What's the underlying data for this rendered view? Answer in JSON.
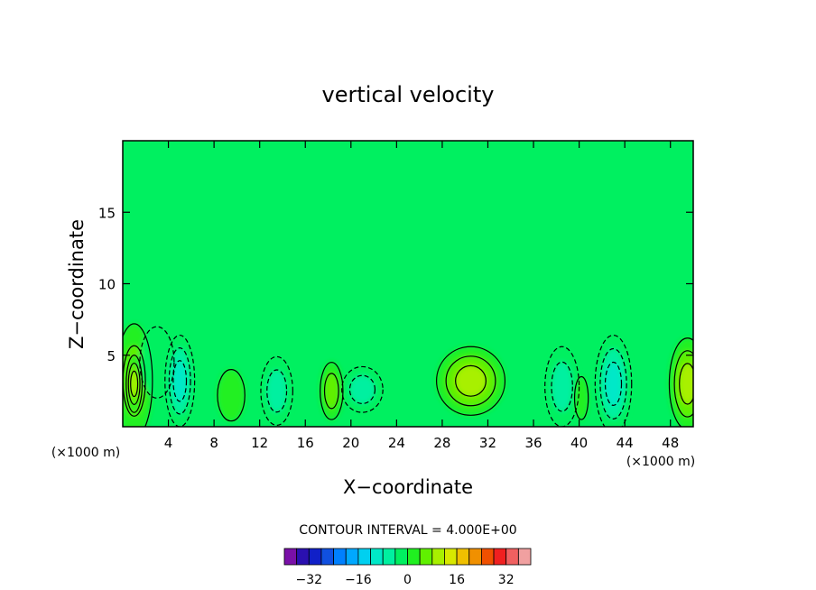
{
  "chart_data": {
    "type": "heatmap",
    "subtype": "filled-contour",
    "title": "vertical velocity",
    "xlabel": "X−coordinate",
    "ylabel": "Z−coordinate",
    "x_unit_label": "(×1000 m)",
    "xlim": [
      0,
      50
    ],
    "ylim": [
      0,
      20
    ],
    "x_ticks": [
      "4",
      "8",
      "12",
      "16",
      "20",
      "24",
      "28",
      "32",
      "36",
      "40",
      "44",
      "48"
    ],
    "y_ticks": [
      "5",
      "10",
      "15"
    ],
    "contour_interval_label": "CONTOUR INTERVAL = 4.000E+00",
    "background_value": 0,
    "cells": [
      {
        "x": 1,
        "z": 3.2,
        "value": 8,
        "sx": 1.6,
        "sz": 4.0
      },
      {
        "x": 1,
        "z": 3.0,
        "value": 12,
        "sx": 0.7,
        "sz": 2.0
      },
      {
        "x": 3.0,
        "z": 4.5,
        "value": -2,
        "sx": 1.5,
        "sz": 2.5
      },
      {
        "x": 5.0,
        "z": 3.2,
        "value": -12,
        "sx": 1.3,
        "sz": 3.2
      },
      {
        "x": 9.5,
        "z": 2.2,
        "value": 5,
        "sx": 1.2,
        "sz": 1.8
      },
      {
        "x": 13.5,
        "z": 2.5,
        "value": -8,
        "sx": 1.4,
        "sz": 2.4
      },
      {
        "x": 18.3,
        "z": 2.5,
        "value": 7,
        "sx": 1.0,
        "sz": 2.0
      },
      {
        "x": 21.0,
        "z": 2.6,
        "value": -6,
        "sx": 1.8,
        "sz": 1.6
      },
      {
        "x": 30.5,
        "z": 3.2,
        "value": 10,
        "sx": 3.0,
        "sz": 2.4
      },
      {
        "x": 38.5,
        "z": 2.8,
        "value": -8,
        "sx": 1.5,
        "sz": 2.8
      },
      {
        "x": 43.0,
        "z": 3.0,
        "value": -12,
        "sx": 1.6,
        "sz": 3.4
      },
      {
        "x": 40.2,
        "z": 2.0,
        "value": 3,
        "sx": 0.6,
        "sz": 1.5
      },
      {
        "x": 49.5,
        "z": 3.0,
        "value": 10,
        "sx": 1.6,
        "sz": 3.2
      }
    ],
    "colorbar": {
      "colors": [
        "#7a10a8",
        "#2a10b0",
        "#1020c8",
        "#1050e0",
        "#0080ff",
        "#00a8ff",
        "#00d0f0",
        "#00e8c8",
        "#00f0a0",
        "#00f060",
        "#20f020",
        "#60f000",
        "#a8f000",
        "#d8e800",
        "#f0c000",
        "#f09000",
        "#f05000",
        "#f02020",
        "#f06060",
        "#f0a0a0"
      ],
      "tick_labels": [
        "−32",
        "−16",
        "0",
        "16",
        "32"
      ]
    }
  }
}
